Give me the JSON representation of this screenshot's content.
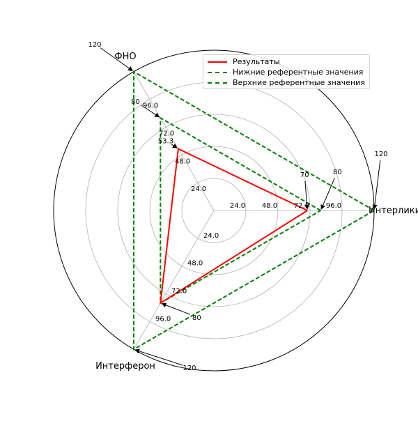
{
  "chart_data": {
    "type": "radar",
    "axes": [
      "Интерликин",
      "ФНО",
      "Интерферон"
    ],
    "radial_ticks": [
      "24.0",
      "48.0",
      "72.0",
      "96.0"
    ],
    "rmax": 120,
    "grid": true,
    "legend_position": "top-right",
    "series": [
      {
        "name": "Результаты",
        "values": [
          70,
          53.3,
          80
        ],
        "color": "#ff0000",
        "style": "solid"
      },
      {
        "name": "Нижние референтные значения",
        "values": [
          80,
          80,
          80
        ],
        "color": "#008000",
        "style": "dashed"
      },
      {
        "name": "Верхние референтные значения",
        "values": [
          120,
          120,
          120
        ],
        "color": "#008000",
        "style": "dashed"
      }
    ],
    "annotations": [
      {
        "axis": 0,
        "value": 70,
        "text": "70"
      },
      {
        "axis": 0,
        "value": 80,
        "text": "80"
      },
      {
        "axis": 0,
        "value": 120,
        "text": "120"
      },
      {
        "axis": 1,
        "value": 53.3,
        "text": "53.3"
      },
      {
        "axis": 1,
        "value": 80,
        "text": "80"
      },
      {
        "axis": 1,
        "value": 120,
        "text": "120"
      },
      {
        "axis": 2,
        "value": 80,
        "text": "80"
      },
      {
        "axis": 2,
        "value": 120,
        "text": "120"
      }
    ]
  }
}
